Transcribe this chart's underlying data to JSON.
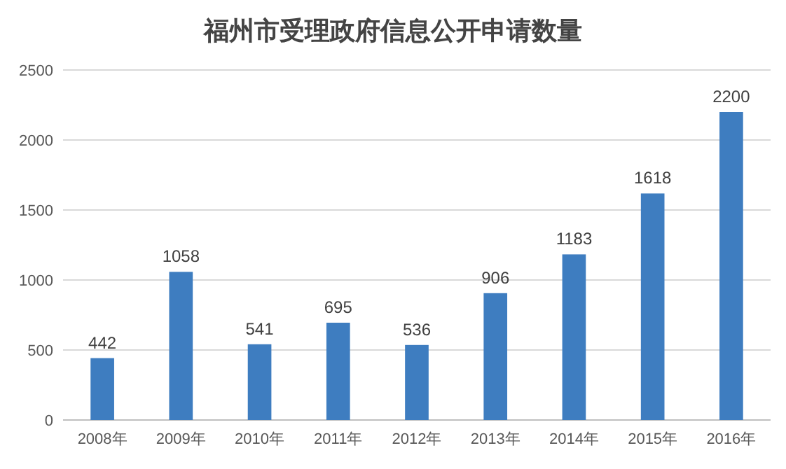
{
  "chart_data": {
    "type": "bar",
    "title": "福州市受理政府信息公开申请数量",
    "categories": [
      "2008年",
      "2009年",
      "2010年",
      "2011年",
      "2012年",
      "2013年",
      "2014年",
      "2015年",
      "2016年"
    ],
    "values": [
      442,
      1058,
      541,
      695,
      536,
      906,
      1183,
      1618,
      2200
    ],
    "color": "#3e7dc0",
    "ylim": [
      0,
      2500
    ],
    "yticks": [
      0,
      500,
      1000,
      1500,
      2000,
      2500
    ],
    "grid": "y",
    "data_labels": true
  }
}
